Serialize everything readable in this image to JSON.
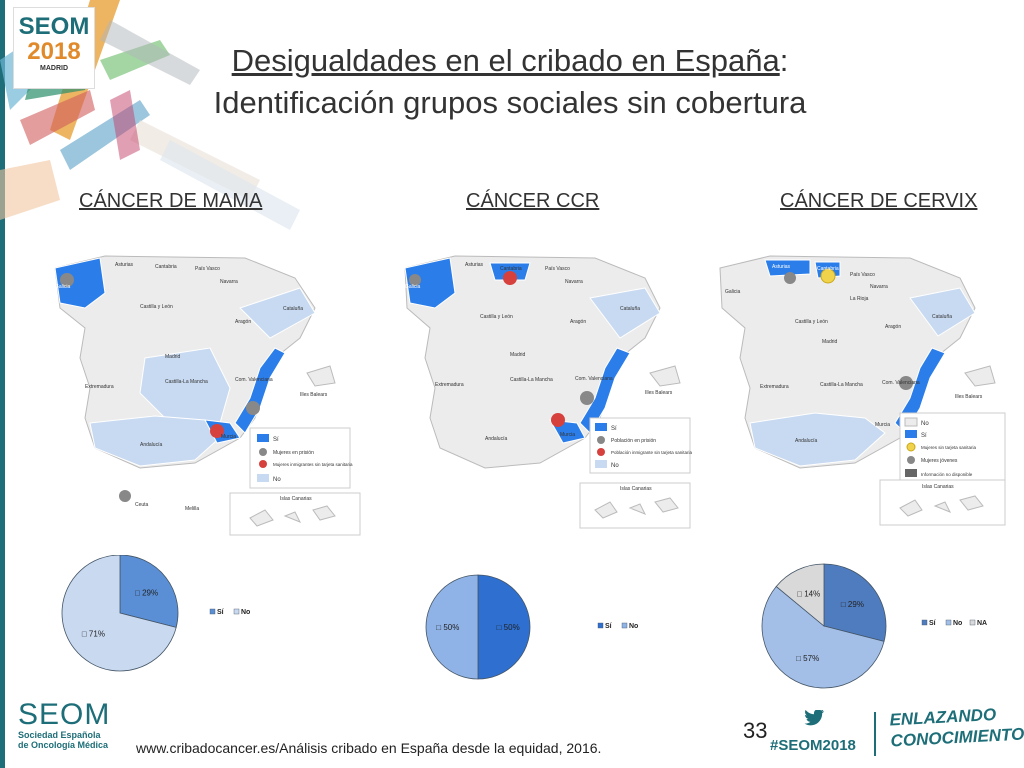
{
  "header": {
    "logo": {
      "line1": "SEOM",
      "line2": "2018",
      "line3": "MADRID"
    },
    "title_underlined": "Desigualdades en el cribado en España",
    "title_colon": ":",
    "title_line2": "Identificación grupos sociales sin cobertura"
  },
  "sections": [
    {
      "label": "CÁNCER DE MAMA"
    },
    {
      "label": "CÁNCER CCR"
    },
    {
      "label": "CÁNCER DE CERVIX"
    }
  ],
  "maps": [
    {
      "legend": [
        "Sí",
        "Mujeres en prisión",
        "Mujeres inmigrantes sin tarjeta sanitaria",
        "No"
      ],
      "labels": [
        "Galicia",
        "Asturias",
        "Cantabria",
        "País Vasco",
        "Navarra",
        "Castilla y León",
        "Aragón",
        "Cataluña",
        "Madrid",
        "Extremadura",
        "Castilla-La Mancha",
        "Com. Valenciana",
        "Illes Balears",
        "Murcia",
        "Andalucía",
        "Islas Canarias",
        "Ceuta",
        "Melilla"
      ]
    },
    {
      "legend": [
        "Sí",
        "Población en prisión",
        "Población inmigrante sin tarjeta sanitaria",
        "No"
      ],
      "labels": [
        "Galicia",
        "Asturias",
        "Cantabria",
        "País Vasco",
        "Navarra",
        "Castilla y León",
        "Aragón",
        "Cataluña",
        "Madrid",
        "Extremadura",
        "Castilla-La Mancha",
        "Com. Valenciana",
        "Illes Balears",
        "Murcia",
        "Andalucía",
        "Islas Canarias"
      ]
    },
    {
      "legend": [
        "No",
        "Sí",
        "Mujeres sin tarjeta sanitaria",
        "Mujeres jóvenes",
        "Información no disponible"
      ],
      "labels": [
        "Galicia",
        "Asturias",
        "Cantabria",
        "País Vasco",
        "Navarra",
        "La Rioja",
        "Castilla y León",
        "Aragón",
        "Cataluña",
        "Madrid",
        "Extremadura",
        "Castilla-La Mancha",
        "Com. Valenciana",
        "Illes Balears",
        "Murcia",
        "Andalucía",
        "Islas Canarias"
      ]
    }
  ],
  "chart_data": [
    {
      "type": "pie",
      "categories": [
        "Sí",
        "No"
      ],
      "values": [
        29,
        71
      ],
      "value_labels": [
        "29%",
        "71%"
      ],
      "colors": [
        "#5a8fd6",
        "#c9d9f0"
      ],
      "legend_position": "right"
    },
    {
      "type": "pie",
      "categories": [
        "Sí",
        "No"
      ],
      "values": [
        50,
        50
      ],
      "value_labels": [
        "50%",
        "50%"
      ],
      "colors": [
        "#2e6fd0",
        "#8fb3e6"
      ],
      "legend_position": "right"
    },
    {
      "type": "pie",
      "categories": [
        "Sí",
        "No",
        "NA"
      ],
      "values": [
        29,
        57,
        14
      ],
      "value_labels": [
        "29%",
        "57%",
        "14%"
      ],
      "colors": [
        "#4f7cbf",
        "#a3bfe8",
        "#d9d9d9"
      ],
      "legend_position": "right"
    }
  ],
  "footer": {
    "source": "www.cribadocancer.es/Análisis cribado en España desde la equidad, 2016.",
    "seom_big": "SEOM",
    "seom_small1": "Sociedad Española",
    "seom_small2": "de Oncología Médica",
    "page_number": "33",
    "hashtag": "#SEOM2018",
    "slogan1": "ENLAZANDO",
    "slogan2": "CONOCIMIENTO"
  },
  "colors": {
    "si": "#2b7de9",
    "no": "#c8daf1",
    "none": "#ececec",
    "prison": "#888888",
    "immigrant": "#d6413d",
    "young": "#f1d24b",
    "brand": "#1d6e78"
  }
}
